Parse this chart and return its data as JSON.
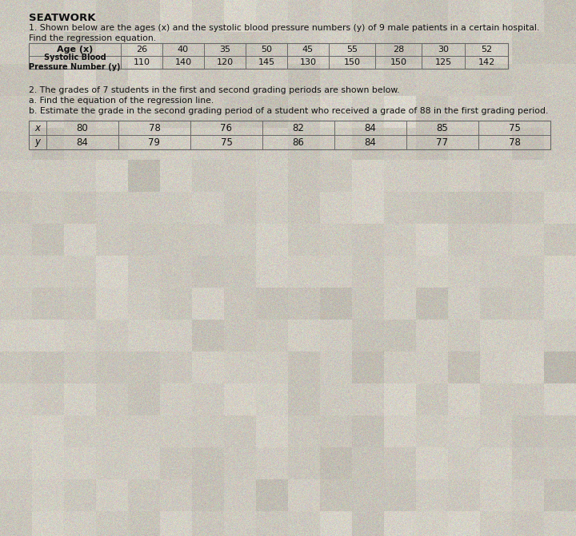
{
  "title": "SEATWORK",
  "problem1_line1": "1. Shown below are the ages (x) and the systolic blood pressure numbers (y) of 9 male patients in a certain hospital.",
  "problem1_line2": "Find the regression equation.",
  "table1_ages": [
    "26",
    "40",
    "35",
    "50",
    "45",
    "55",
    "28",
    "30",
    "52"
  ],
  "table1_bp": [
    "110",
    "140",
    "120",
    "145",
    "130",
    "150",
    "150",
    "125",
    "142"
  ],
  "problem2_line1": "2. The grades of 7 students in the first and second grading periods are shown below.",
  "problem2_line2": "a. Find the equation of the regression line.",
  "problem2_line3": "b. Estimate the grade in the second grading period of a student who received a grade of 88 in the first grading period.",
  "table2_x": [
    "x",
    "80",
    "78",
    "76",
    "82",
    "84",
    "85",
    "75"
  ],
  "table2_y": [
    "y",
    "84",
    "79",
    "75",
    "86",
    "84",
    "77",
    "78"
  ],
  "bg_color": "#ccc8be",
  "table_line_color": "#666666",
  "text_color": "#111111"
}
